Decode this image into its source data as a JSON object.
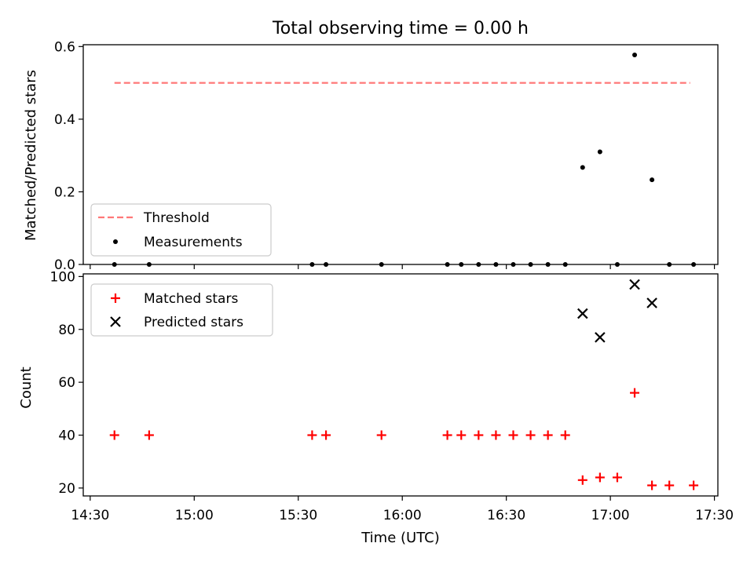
{
  "chart_data": [
    {
      "type": "scatter",
      "title": "Total observing time = 0.00 h",
      "xlabel": "",
      "ylabel": "Matched/Predicted stars",
      "xlim": [
        "14:28",
        "17:31"
      ],
      "ylim": [
        0,
        0.605
      ],
      "yticks": [
        "0.0",
        "0.2",
        "0.4",
        "0.6"
      ],
      "threshold": {
        "name": "Threshold",
        "value": 0.5,
        "x_start": "14:37",
        "x_end": "17:23",
        "color": "#ff7777",
        "style": "dashed"
      },
      "series": [
        {
          "name": "Measurements",
          "color": "#000000",
          "points": [
            {
              "x": "14:37",
              "y": 0.0
            },
            {
              "x": "14:47",
              "y": 0.0
            },
            {
              "x": "15:34",
              "y": 0.0
            },
            {
              "x": "15:38",
              "y": 0.0
            },
            {
              "x": "15:54",
              "y": 0.0
            },
            {
              "x": "16:13",
              "y": 0.0
            },
            {
              "x": "16:17",
              "y": 0.0
            },
            {
              "x": "16:22",
              "y": 0.0
            },
            {
              "x": "16:27",
              "y": 0.0
            },
            {
              "x": "16:32",
              "y": 0.0
            },
            {
              "x": "16:37",
              "y": 0.0
            },
            {
              "x": "16:42",
              "y": 0.0
            },
            {
              "x": "16:47",
              "y": 0.0
            },
            {
              "x": "16:52",
              "y": 0.267
            },
            {
              "x": "16:57",
              "y": 0.31
            },
            {
              "x": "17:02",
              "y": 0.0
            },
            {
              "x": "17:07",
              "y": 0.577
            },
            {
              "x": "17:12",
              "y": 0.233
            },
            {
              "x": "17:17",
              "y": 0.0
            },
            {
              "x": "17:24",
              "y": 0.0
            }
          ]
        }
      ],
      "legend": "lower-left"
    },
    {
      "type": "scatter",
      "title": "",
      "xlabel": "Time (UTC)",
      "ylabel": "Count",
      "xlim": [
        "14:28",
        "17:31"
      ],
      "ylim": [
        17,
        101
      ],
      "xticks": [
        "14:30",
        "15:00",
        "15:30",
        "16:00",
        "16:30",
        "17:00",
        "17:30"
      ],
      "yticks": [
        "20",
        "40",
        "60",
        "80",
        "100"
      ],
      "series": [
        {
          "name": "Matched stars",
          "marker": "plus",
          "color": "#ff0000",
          "points": [
            {
              "x": "14:37",
              "y": 40
            },
            {
              "x": "14:47",
              "y": 40
            },
            {
              "x": "15:34",
              "y": 40
            },
            {
              "x": "15:38",
              "y": 40
            },
            {
              "x": "15:54",
              "y": 40
            },
            {
              "x": "16:13",
              "y": 40
            },
            {
              "x": "16:17",
              "y": 40
            },
            {
              "x": "16:22",
              "y": 40
            },
            {
              "x": "16:27",
              "y": 40
            },
            {
              "x": "16:32",
              "y": 40
            },
            {
              "x": "16:37",
              "y": 40
            },
            {
              "x": "16:42",
              "y": 40
            },
            {
              "x": "16:47",
              "y": 40
            },
            {
              "x": "16:52",
              "y": 23
            },
            {
              "x": "16:57",
              "y": 24
            },
            {
              "x": "17:02",
              "y": 24
            },
            {
              "x": "17:07",
              "y": 56
            },
            {
              "x": "17:12",
              "y": 21
            },
            {
              "x": "17:17",
              "y": 21
            },
            {
              "x": "17:24",
              "y": 21
            }
          ]
        },
        {
          "name": "Predicted stars",
          "marker": "x",
          "color": "#000000",
          "points": [
            {
              "x": "16:52",
              "y": 86
            },
            {
              "x": "16:57",
              "y": 77
            },
            {
              "x": "17:07",
              "y": 97
            },
            {
              "x": "17:12",
              "y": 90
            }
          ]
        }
      ],
      "legend": "upper-left"
    }
  ]
}
